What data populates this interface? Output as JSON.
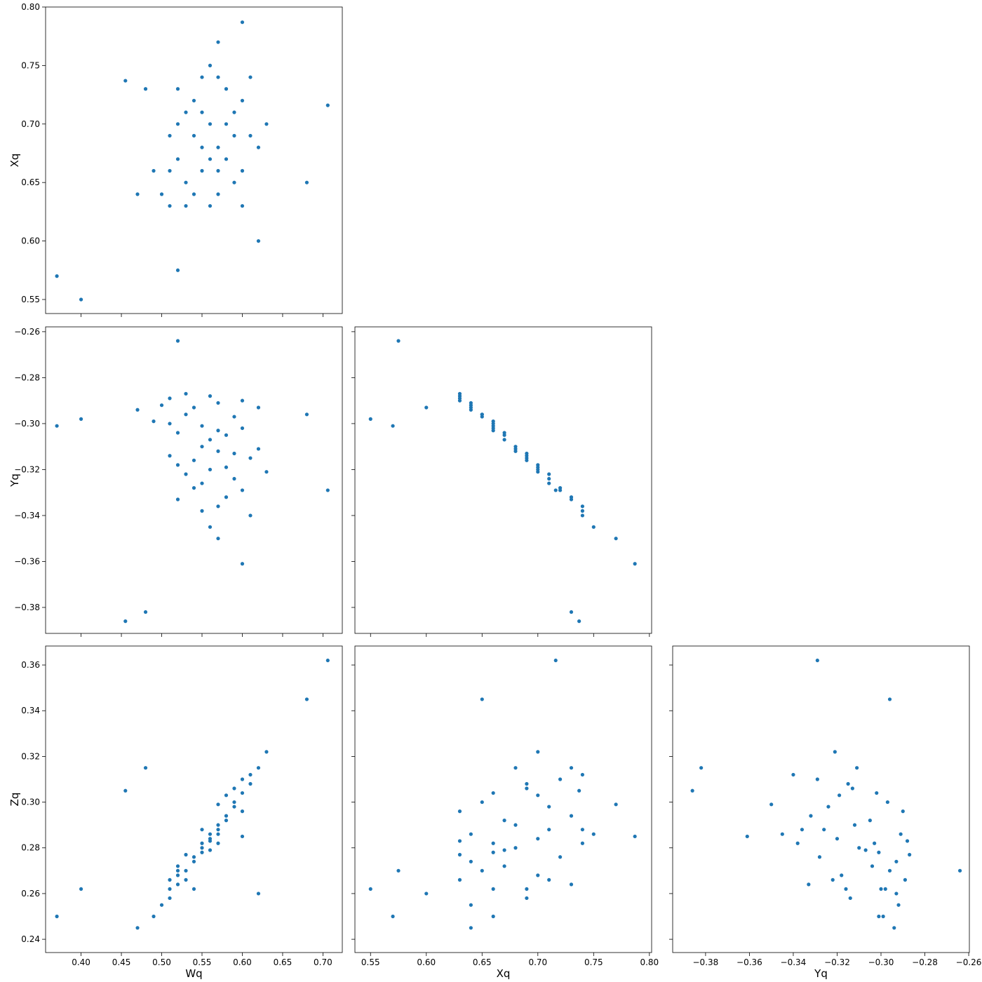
{
  "chart_data": {
    "type": "scatter",
    "color": "#1f77b4",
    "variables": [
      {
        "name": "Wq",
        "values": [
          0.5,
          0.51,
          0.52,
          0.53,
          0.54,
          0.55,
          0.56,
          0.57,
          0.58,
          0.59,
          0.6,
          0.61,
          0.52,
          0.54,
          0.56,
          0.58,
          0.55,
          0.57,
          0.53,
          0.59,
          0.51,
          0.6,
          0.55,
          0.57,
          0.56,
          0.62,
          0.49,
          0.54,
          0.58,
          0.53,
          0.56,
          0.6,
          0.52,
          0.55,
          0.57,
          0.59,
          0.61,
          0.51,
          0.63,
          0.47,
          0.37,
          0.48,
          0.706,
          0.52,
          0.68,
          0.6,
          0.455,
          0.57,
          0.62,
          0.4
        ],
        "xlim": [
          0.356,
          0.724
        ],
        "xticks": [
          {
            "value": 0.4,
            "label": "0.40"
          },
          0.45,
          {
            "value": 0.5,
            "label": "0.50"
          },
          0.55,
          {
            "value": 0.6,
            "label": "0.60"
          },
          0.65,
          {
            "value": 0.7,
            "label": "0.70"
          }
        ]
      },
      {
        "name": "Xq",
        "values": [
          0.64,
          0.66,
          0.7,
          0.65,
          0.72,
          0.68,
          0.63,
          0.74,
          0.67,
          0.71,
          0.66,
          0.69,
          0.67,
          0.64,
          0.7,
          0.73,
          0.66,
          0.68,
          0.71,
          0.65,
          0.69,
          0.72,
          0.74,
          0.64,
          0.67,
          0.68,
          0.66,
          0.69,
          0.7,
          0.63,
          0.75,
          0.63,
          0.73,
          0.71,
          0.66,
          0.69,
          0.74,
          0.63,
          0.7,
          0.64,
          0.57,
          0.73,
          0.716,
          0.575,
          0.65,
          0.787,
          0.737,
          0.77,
          0.6,
          0.55
        ],
        "xlim": [
          0.536,
          0.802
        ],
        "xticks": [
          0.55,
          {
            "value": 0.6,
            "label": "0.60"
          },
          0.65,
          {
            "value": 0.7,
            "label": "0.70"
          },
          0.75,
          {
            "value": 0.8,
            "label": "0.80"
          }
        ],
        "ylim": [
          0.538,
          0.8
        ],
        "yticks": [
          0.55,
          {
            "value": 0.6,
            "label": "0.60"
          },
          0.65,
          {
            "value": 0.7,
            "label": "0.70"
          },
          0.75,
          {
            "value": 0.8,
            "label": "0.80"
          }
        ]
      },
      {
        "name": "Yq",
        "values": [
          -0.292,
          -0.3,
          -0.318,
          -0.296,
          -0.328,
          -0.31,
          -0.288,
          -0.336,
          -0.305,
          -0.324,
          -0.302,
          -0.315,
          -0.304,
          -0.293,
          -0.32,
          -0.332,
          -0.301,
          -0.312,
          -0.322,
          -0.297,
          -0.314,
          -0.329,
          -0.338,
          -0.291,
          -0.307,
          -0.311,
          -0.299,
          -0.316,
          -0.319,
          -0.287,
          -0.345,
          -0.29,
          -0.333,
          -0.326,
          -0.303,
          -0.313,
          -0.34,
          -0.289,
          -0.321,
          -0.294,
          -0.301,
          -0.382,
          -0.329,
          -0.264,
          -0.296,
          -0.361,
          -0.386,
          -0.35,
          -0.293,
          -0.298
        ],
        "xlim": [
          -0.395,
          -0.2597
        ],
        "xticks": [
          {
            "value": -0.38,
            "label": "−0.38"
          },
          {
            "value": -0.36,
            "label": "−0.36"
          },
          {
            "value": -0.34,
            "label": "−0.34"
          },
          {
            "value": -0.32,
            "label": "−0.32"
          },
          {
            "value": -0.3,
            "label": "−0.30"
          },
          {
            "value": -0.28,
            "label": "−0.28"
          },
          {
            "value": -0.26,
            "label": "−0.26"
          }
        ],
        "ylim": [
          -0.3913,
          -0.2579
        ],
        "yticks": [
          {
            "value": -0.38,
            "label": "−0.38"
          },
          {
            "value": -0.36,
            "label": "−0.36"
          },
          {
            "value": -0.34,
            "label": "−0.34"
          },
          {
            "value": -0.32,
            "label": "−0.32"
          },
          {
            "value": -0.3,
            "label": "−0.30"
          },
          {
            "value": -0.28,
            "label": "−0.28"
          },
          {
            "value": -0.26,
            "label": "−0.26"
          }
        ]
      },
      {
        "name": "Zq",
        "values": [
          0.255,
          0.262,
          0.268,
          0.27,
          0.276,
          0.28,
          0.283,
          0.288,
          0.292,
          0.298,
          0.304,
          0.308,
          0.272,
          0.274,
          0.284,
          0.294,
          0.278,
          0.29,
          0.266,
          0.3,
          0.258,
          0.31,
          0.282,
          0.286,
          0.279,
          0.315,
          0.25,
          0.262,
          0.303,
          0.277,
          0.286,
          0.296,
          0.264,
          0.288,
          0.282,
          0.306,
          0.312,
          0.266,
          0.322,
          0.245,
          0.25,
          0.315,
          0.362,
          0.27,
          0.345,
          0.285,
          0.305,
          0.299,
          0.26,
          0.262
        ],
        "ylim": [
          0.2342,
          0.3683
        ],
        "yticks": [
          {
            "value": 0.24,
            "label": "0.24"
          },
          {
            "value": 0.26,
            "label": "0.26"
          },
          {
            "value": 0.28,
            "label": "0.28"
          },
          {
            "value": 0.3,
            "label": "0.30"
          },
          0.32,
          0.34,
          0.36
        ]
      }
    ]
  }
}
